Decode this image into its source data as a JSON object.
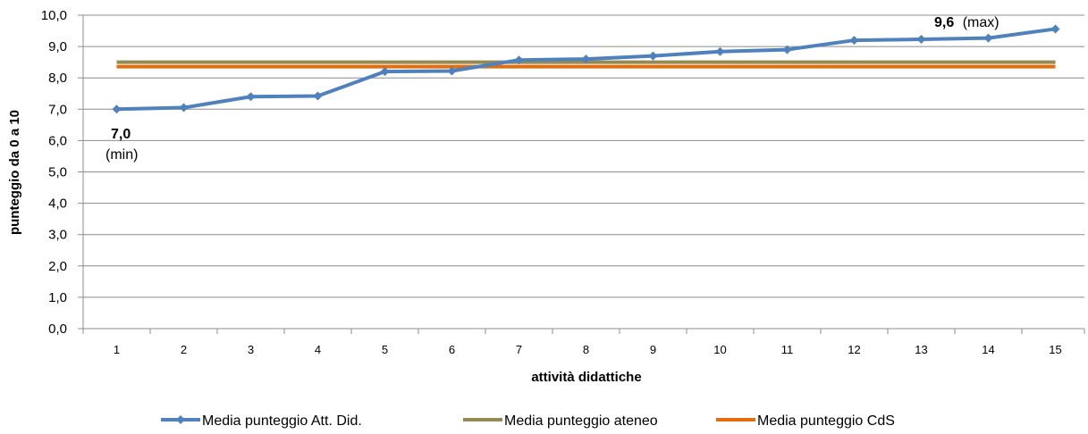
{
  "chart_data": {
    "type": "line",
    "xlabel": "attività didattiche",
    "ylabel": "punteggio da 0 a 10",
    "ylim": [
      0,
      10
    ],
    "yticks": [
      "0,0",
      "1,0",
      "2,0",
      "3,0",
      "4,0",
      "5,0",
      "6,0",
      "7,0",
      "8,0",
      "9,0",
      "10,0"
    ],
    "categories": [
      "1",
      "2",
      "3",
      "4",
      "5",
      "6",
      "7",
      "8",
      "9",
      "10",
      "11",
      "12",
      "13",
      "14",
      "15"
    ],
    "grid": "horizontal",
    "legend_position": "bottom",
    "series": [
      {
        "name": "Media punteggio Att. Did.",
        "color": "#4f81bd",
        "marker": "diamond",
        "values": [
          7.0,
          7.05,
          7.4,
          7.42,
          8.2,
          8.22,
          8.57,
          8.6,
          8.7,
          8.84,
          8.9,
          9.2,
          9.23,
          9.27,
          9.56
        ]
      },
      {
        "name": "Media punteggio ateneo",
        "color": "#948a54",
        "marker": "none",
        "values": [
          8.5,
          8.5,
          8.5,
          8.5,
          8.5,
          8.5,
          8.5,
          8.5,
          8.5,
          8.5,
          8.5,
          8.5,
          8.5,
          8.5,
          8.5
        ]
      },
      {
        "name": "Media punteggio CdS",
        "color": "#e46c0a",
        "marker": "none",
        "values": [
          8.36,
          8.36,
          8.36,
          8.36,
          8.36,
          8.36,
          8.36,
          8.36,
          8.36,
          8.36,
          8.36,
          8.36,
          8.36,
          8.36,
          8.36
        ]
      }
    ],
    "annotations": {
      "min": {
        "value": "7,0",
        "note": "(min)"
      },
      "max": {
        "value": "9,6",
        "note": "(max)"
      }
    }
  }
}
